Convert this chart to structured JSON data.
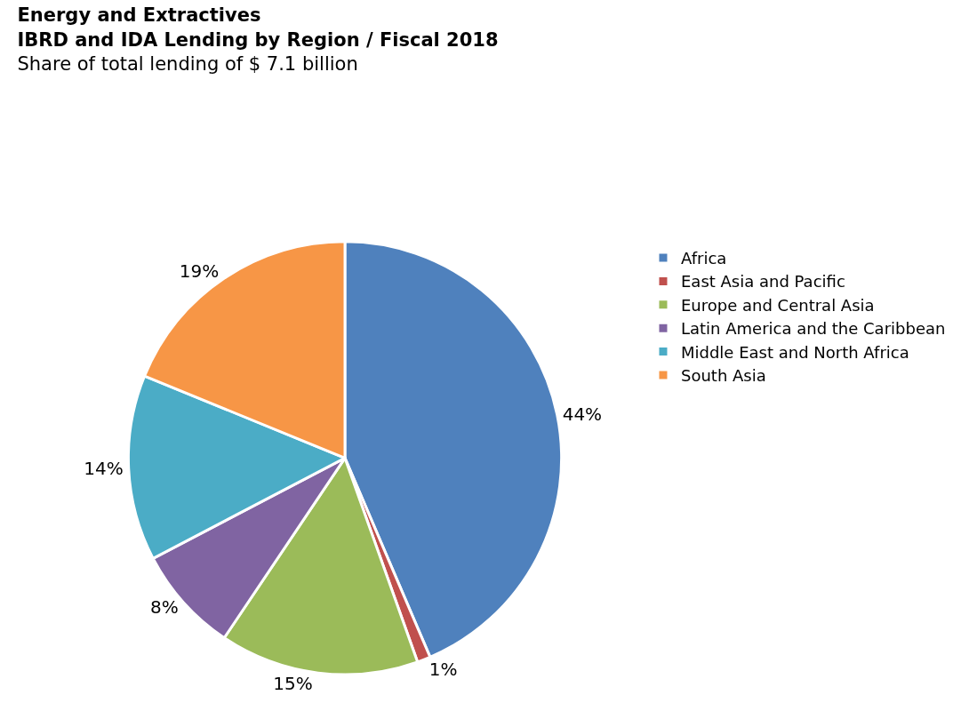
{
  "chart_data": {
    "type": "pie",
    "title": "Energy and Extractives\nIBRD and IDA Lending by Region / Fiscal 2018",
    "subtitle": "Share of total lending of $ 7.1 billion",
    "categories": [
      "Africa",
      "East Asia and Pacific",
      "Europe and Central Asia",
      "Latin America and the Caribbean",
      "Middle East and North Africa",
      "South Asia"
    ],
    "values": [
      44,
      1,
      15,
      8,
      14,
      19
    ],
    "value_labels": [
      "44%",
      "1%",
      "15%",
      "8%",
      "14%",
      "19%"
    ],
    "colors": [
      "#4f81bd",
      "#c0504d",
      "#9bbb59",
      "#8064a2",
      "#4bacc6",
      "#f79646"
    ],
    "legend": "right"
  }
}
